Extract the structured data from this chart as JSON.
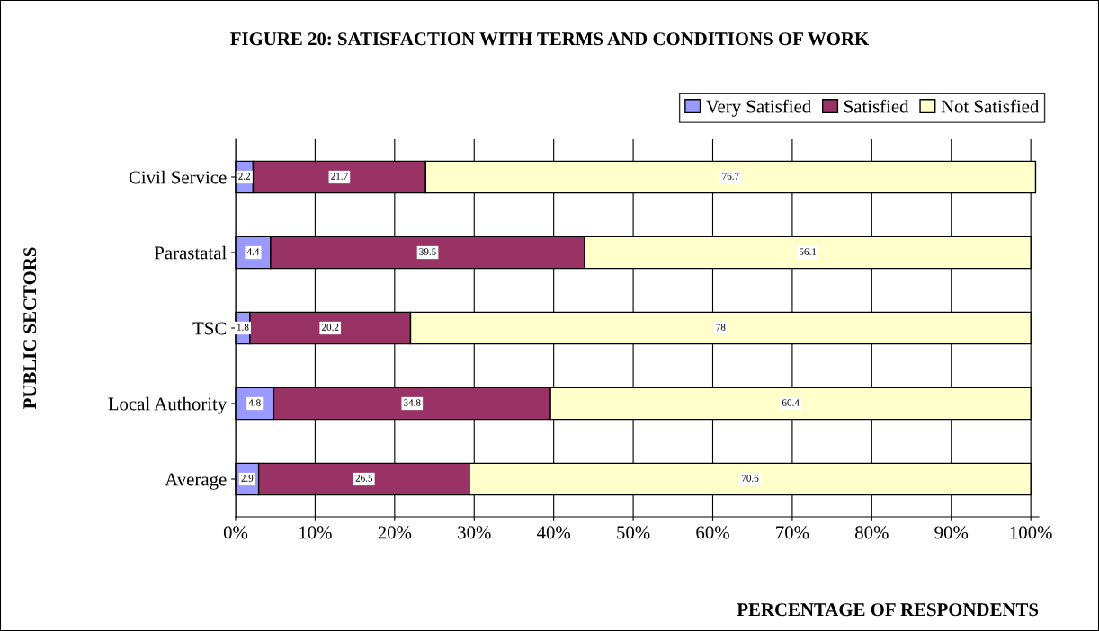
{
  "chart_data": {
    "type": "bar",
    "orientation": "horizontal",
    "stacked": true,
    "title": "FIGURE 20: SATISFACTION WITH TERMS AND CONDITIONS OF WORK",
    "xlabel": "PERCENTAGE OF RESPONDENTS",
    "ylabel": "PUBLIC SECTORS",
    "categories": [
      "Civil Service",
      "Parastatal",
      "TSC",
      "Local Authority",
      "Average"
    ],
    "series": [
      {
        "name": "Very Satisfied",
        "color": "#9999ff",
        "values": [
          2.2,
          4.4,
          1.8,
          4.8,
          2.9
        ]
      },
      {
        "name": "Satisfied",
        "color": "#993366",
        "values": [
          21.7,
          39.5,
          20.2,
          34.8,
          26.5
        ]
      },
      {
        "name": "Not Satisfied",
        "color": "#ffffcc",
        "values": [
          76.7,
          56.1,
          78,
          60.4,
          70.6
        ]
      }
    ],
    "xlim": [
      0,
      101
    ],
    "xticks": [
      {
        "value": 0,
        "label": "0%"
      },
      {
        "value": 10,
        "label": "10%"
      },
      {
        "value": 20,
        "label": "20%"
      },
      {
        "value": 30,
        "label": "30%"
      },
      {
        "value": 40,
        "label": "40%"
      },
      {
        "value": 50,
        "label": "50%"
      },
      {
        "value": 60,
        "label": "60%"
      },
      {
        "value": 70,
        "label": "70%"
      },
      {
        "value": 80,
        "label": "80%"
      },
      {
        "value": 90,
        "label": "90%"
      },
      {
        "value": 100,
        "label": "100%"
      }
    ],
    "grid": "x",
    "legend": "top right",
    "data_labels": true
  }
}
